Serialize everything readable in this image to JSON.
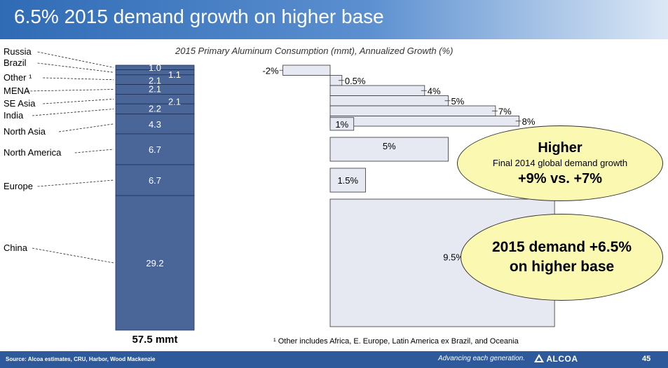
{
  "title": "6.5% 2015 demand growth on higher base",
  "subtitle": "2015 Primary Aluminum Consumption (mmt), Annualized Growth (%)",
  "footnote": "¹ Other includes Africa, E. Europe, Latin America ex Brazil, and Oceania",
  "footer": {
    "source": "Source: Alcoa estimates, CRU, Harbor, Wood Mackenzie",
    "tagline": "Advancing each generation.",
    "logo": "ALCOA",
    "page": "45"
  },
  "callouts": {
    "higher_title": "Higher",
    "higher_sub": "Final 2014 global demand growth",
    "higher_values": "+9%  vs. +7%",
    "demand_line1": "2015 demand +6.5%",
    "demand_line2": "on higher base"
  },
  "colors": {
    "stack_fill": "#4a6699",
    "growth_fill": "#e6e9f2",
    "callout_fill": "#fbf8b2",
    "title_bar": "#2f6bb5"
  },
  "chart_data": [
    {
      "type": "bar",
      "stacked": true,
      "total_label": "57.5 mmt",
      "series": [
        {
          "region": "Russia",
          "value": 1.0,
          "label": "1.0"
        },
        {
          "region": "Brazil",
          "value": 1.1,
          "label": "1.1"
        },
        {
          "region": "Other ¹",
          "value": 2.1,
          "label": "2.1"
        },
        {
          "region": "MENA",
          "value": 2.1,
          "label": "2.1"
        },
        {
          "region": "SE Asia",
          "value": 2.1,
          "label": "2.1"
        },
        {
          "region": "India",
          "value": 2.2,
          "label": "2.2"
        },
        {
          "region": "North Asia",
          "value": 4.3,
          "label": "4.3"
        },
        {
          "region": "North America",
          "value": 6.7,
          "label": "6.7"
        },
        {
          "region": "Europe",
          "value": 6.7,
          "label": "6.7"
        },
        {
          "region": "China",
          "value": 29.2,
          "label": "29.2"
        }
      ]
    },
    {
      "type": "bar",
      "orientation": "horizontal",
      "series": [
        {
          "region": "Russia",
          "value": -2,
          "label": "-2%"
        },
        {
          "region": "Brazil",
          "value": 0.5,
          "label": "0.5%"
        },
        {
          "region": "Other ¹",
          "value": 4,
          "label": "4%"
        },
        {
          "region": "MENA",
          "value": 5,
          "label": "5%"
        },
        {
          "region": "SE Asia",
          "value": 7,
          "label": "7%"
        },
        {
          "region": "India",
          "value": 8,
          "label": "8%"
        },
        {
          "region": "North Asia",
          "value": 1,
          "label": "1%"
        },
        {
          "region": "North America",
          "value": 5,
          "label": "5%"
        },
        {
          "region": "Europe",
          "value": 1.5,
          "label": "1.5%"
        },
        {
          "region": "China",
          "value": 9.5,
          "label": "9.5%"
        }
      ]
    }
  ]
}
